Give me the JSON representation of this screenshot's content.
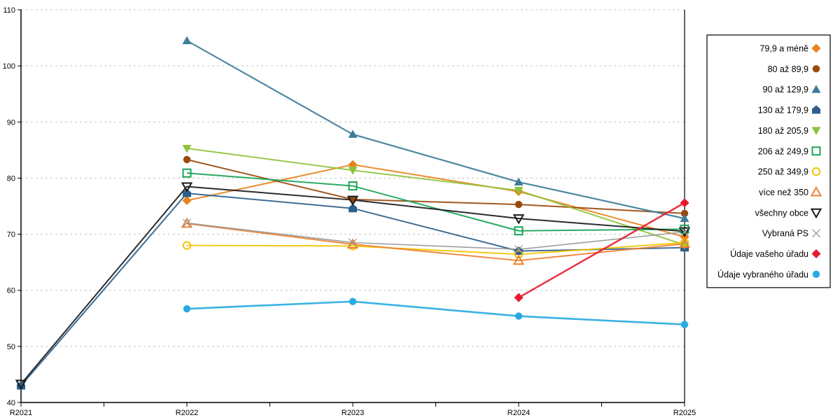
{
  "chart_data": {
    "type": "line",
    "title": "",
    "xlabel": "",
    "ylabel": "",
    "categories": [
      "R2021",
      "R2022",
      "R2023",
      "R2024",
      "R2025"
    ],
    "ylim": [
      40,
      110
    ],
    "ytick_step": 10,
    "y_tick_labels": [
      "40",
      "50",
      "60",
      "70",
      "80",
      "90",
      "100",
      "110"
    ],
    "grid": "horizontal dashed",
    "legend_position": "right",
    "series": [
      {
        "name": "79,9 a méně",
        "color": "#E8821B",
        "marker": "diamond",
        "filled": true,
        "line_width": 2,
        "values": [
          null,
          76.0,
          82.4,
          77.6,
          69.5
        ]
      },
      {
        "name": "80 až 89,9",
        "color": "#9A4A0D",
        "marker": "circle",
        "filled": true,
        "line_width": 2,
        "values": [
          null,
          83.3,
          76.2,
          75.3,
          73.7
        ]
      },
      {
        "name": "90 až 129,9",
        "color": "#3D7E9A",
        "marker": "triangle-up",
        "filled": true,
        "line_width": 2.2,
        "values": [
          null,
          104.5,
          87.8,
          79.3,
          72.8
        ]
      },
      {
        "name": "130 až 179,9",
        "color": "#2E5F8A",
        "marker": "pentagon",
        "filled": true,
        "line_width": 2,
        "values": [
          43.0,
          77.3,
          74.6,
          67.0,
          67.6
        ]
      },
      {
        "name": "180 až 205,9",
        "color": "#8FC33C",
        "marker": "triangle-down",
        "filled": true,
        "line_width": 2,
        "values": [
          null,
          85.3,
          81.4,
          77.8,
          68.1
        ]
      },
      {
        "name": "206 až 249,9",
        "color": "#17A455",
        "marker": "square",
        "filled": false,
        "line_width": 2,
        "values": [
          null,
          80.9,
          78.6,
          70.6,
          70.9
        ]
      },
      {
        "name": "250 až 349,9",
        "color": "#F2C500",
        "marker": "circle",
        "filled": false,
        "line_width": 2,
        "values": [
          null,
          68.0,
          67.9,
          66.4,
          68.5
        ]
      },
      {
        "name": "více než 350",
        "color": "#F08030",
        "marker": "triangle-up",
        "filled": false,
        "line_width": 2,
        "values": [
          null,
          71.9,
          68.2,
          65.3,
          68.3
        ]
      },
      {
        "name": "všechny obce",
        "color": "#1A1A1A",
        "marker": "triangle-down",
        "filled": false,
        "line_width": 2,
        "values": [
          43.3,
          78.5,
          76.1,
          72.8,
          70.5
        ]
      },
      {
        "name": "Vybraná PS",
        "color": "#969696",
        "marker": "x",
        "filled": false,
        "line_width": 1.6,
        "values": [
          null,
          72.0,
          68.5,
          67.3,
          70.4
        ]
      },
      {
        "name": "Údaje vašeho úřadu",
        "color": "#E8192C",
        "marker": "diamond",
        "filled": true,
        "line_width": 2.4,
        "values": [
          null,
          null,
          null,
          58.7,
          75.6
        ]
      },
      {
        "name": "Údaje vybraného úřadu",
        "color": "#29ABE2",
        "marker": "circle",
        "filled": true,
        "line_width": 2.6,
        "values": [
          null,
          56.7,
          58.0,
          55.4,
          53.9
        ]
      }
    ]
  },
  "colors": {
    "background": "#FFFFFF",
    "axis": "#000000",
    "gridline": "#C4C4C4",
    "legend_border": "#000000"
  }
}
